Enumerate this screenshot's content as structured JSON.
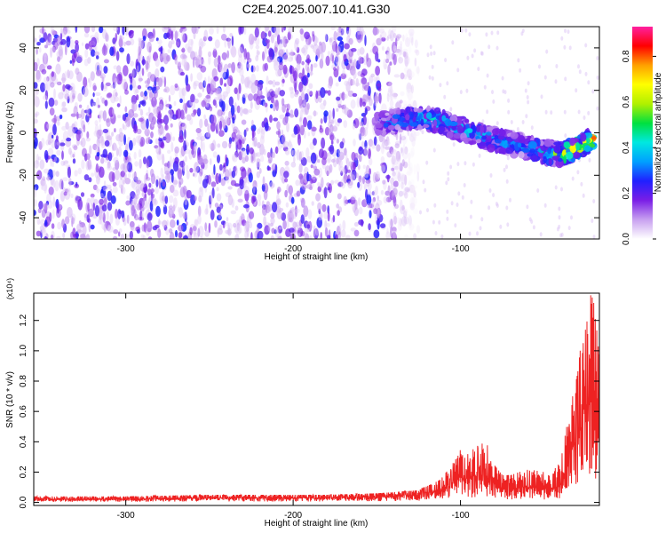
{
  "figure_title": "C2E4.2025.007.10.41.G30",
  "chart_data": [
    {
      "type": "heatmap",
      "title": "C2E4.2025.007.10.41.G30",
      "xlabel": "Height of straight line (km)",
      "ylabel": "Frequency (Hz)",
      "xlim": [
        -355,
        -17
      ],
      "ylim": [
        -50,
        50
      ],
      "x_ticks": [
        -300,
        -200,
        -100
      ],
      "x_tick_labels": [
        "-300",
        "-200",
        "-100"
      ],
      "y_ticks": [
        -40,
        -20,
        0,
        20,
        40
      ],
      "y_tick_labels": [
        "-40",
        "-20",
        "0",
        "20",
        "40"
      ],
      "colorbar": {
        "label": "Normalized spectral amplitude",
        "range": [
          0.0,
          0.93
        ],
        "ticks": [
          0.0,
          0.2,
          0.4,
          0.6,
          0.8
        ],
        "tick_labels": [
          "0.0",
          "0.2",
          "0.4",
          "0.6",
          "0.8"
        ],
        "colormap": [
          "#ffffff",
          "#c8a0f0",
          "#7a1ee6",
          "#2020ff",
          "#00a0ff",
          "#00e8e0",
          "#00e040",
          "#b0f000",
          "#ffff00",
          "#ffa000",
          "#ff0000",
          "#ff20a0"
        ]
      },
      "signal_ridge": {
        "x": [
          -150,
          -130,
          -115,
          -100,
          -85,
          -70,
          -55,
          -45,
          -35,
          -25,
          -20
        ],
        "frequency": [
          4,
          7,
          6,
          2,
          -2,
          -5,
          -8,
          -10,
          -9,
          -5,
          -2
        ],
        "amplitude": [
          0.3,
          0.45,
          0.5,
          0.45,
          0.45,
          0.4,
          0.45,
          0.6,
          0.85,
          0.9,
          0.8
        ]
      },
      "noise_region_x": [
        -355,
        -125
      ],
      "grid": false
    },
    {
      "type": "line",
      "xlabel": "Height of straight line (km)",
      "ylabel": "SNR (10 * v/v)",
      "y_scale_label": "(x10⁴)",
      "y_scale_multiplier": 10000,
      "xlim": [
        -355,
        -17
      ],
      "ylim": [
        -0.02,
        1.38
      ],
      "x_ticks": [
        -300,
        -200,
        -100
      ],
      "x_tick_labels": [
        "-300",
        "-200",
        "-100"
      ],
      "y_ticks": [
        0.0,
        0.2,
        0.4,
        0.6,
        0.8,
        1.0,
        1.2
      ],
      "y_tick_labels": [
        "0.0",
        "0.2",
        "0.4",
        "0.6",
        "0.8",
        "1.0",
        "1.2"
      ],
      "series_color": "#ee2222",
      "envelope": {
        "x": [
          -355,
          -300,
          -250,
          -220,
          -180,
          -150,
          -125,
          -112,
          -105,
          -100,
          -95,
          -90,
          -85,
          -80,
          -75,
          -70,
          -60,
          -50,
          -45,
          -40,
          -35,
          -30,
          -28,
          -25,
          -22,
          -20,
          -17
        ],
        "y_max": [
          0.04,
          0.04,
          0.05,
          0.05,
          0.05,
          0.06,
          0.08,
          0.15,
          0.25,
          0.38,
          0.32,
          0.38,
          0.42,
          0.25,
          0.18,
          0.18,
          0.22,
          0.2,
          0.2,
          0.28,
          0.6,
          0.85,
          1.05,
          1.15,
          1.38,
          1.3,
          0.95
        ],
        "y_typ": [
          0.02,
          0.02,
          0.03,
          0.03,
          0.03,
          0.035,
          0.05,
          0.08,
          0.12,
          0.16,
          0.15,
          0.17,
          0.18,
          0.12,
          0.1,
          0.1,
          0.1,
          0.09,
          0.09,
          0.12,
          0.3,
          0.45,
          0.55,
          0.6,
          0.7,
          0.65,
          0.55
        ]
      },
      "grid": false
    }
  ]
}
